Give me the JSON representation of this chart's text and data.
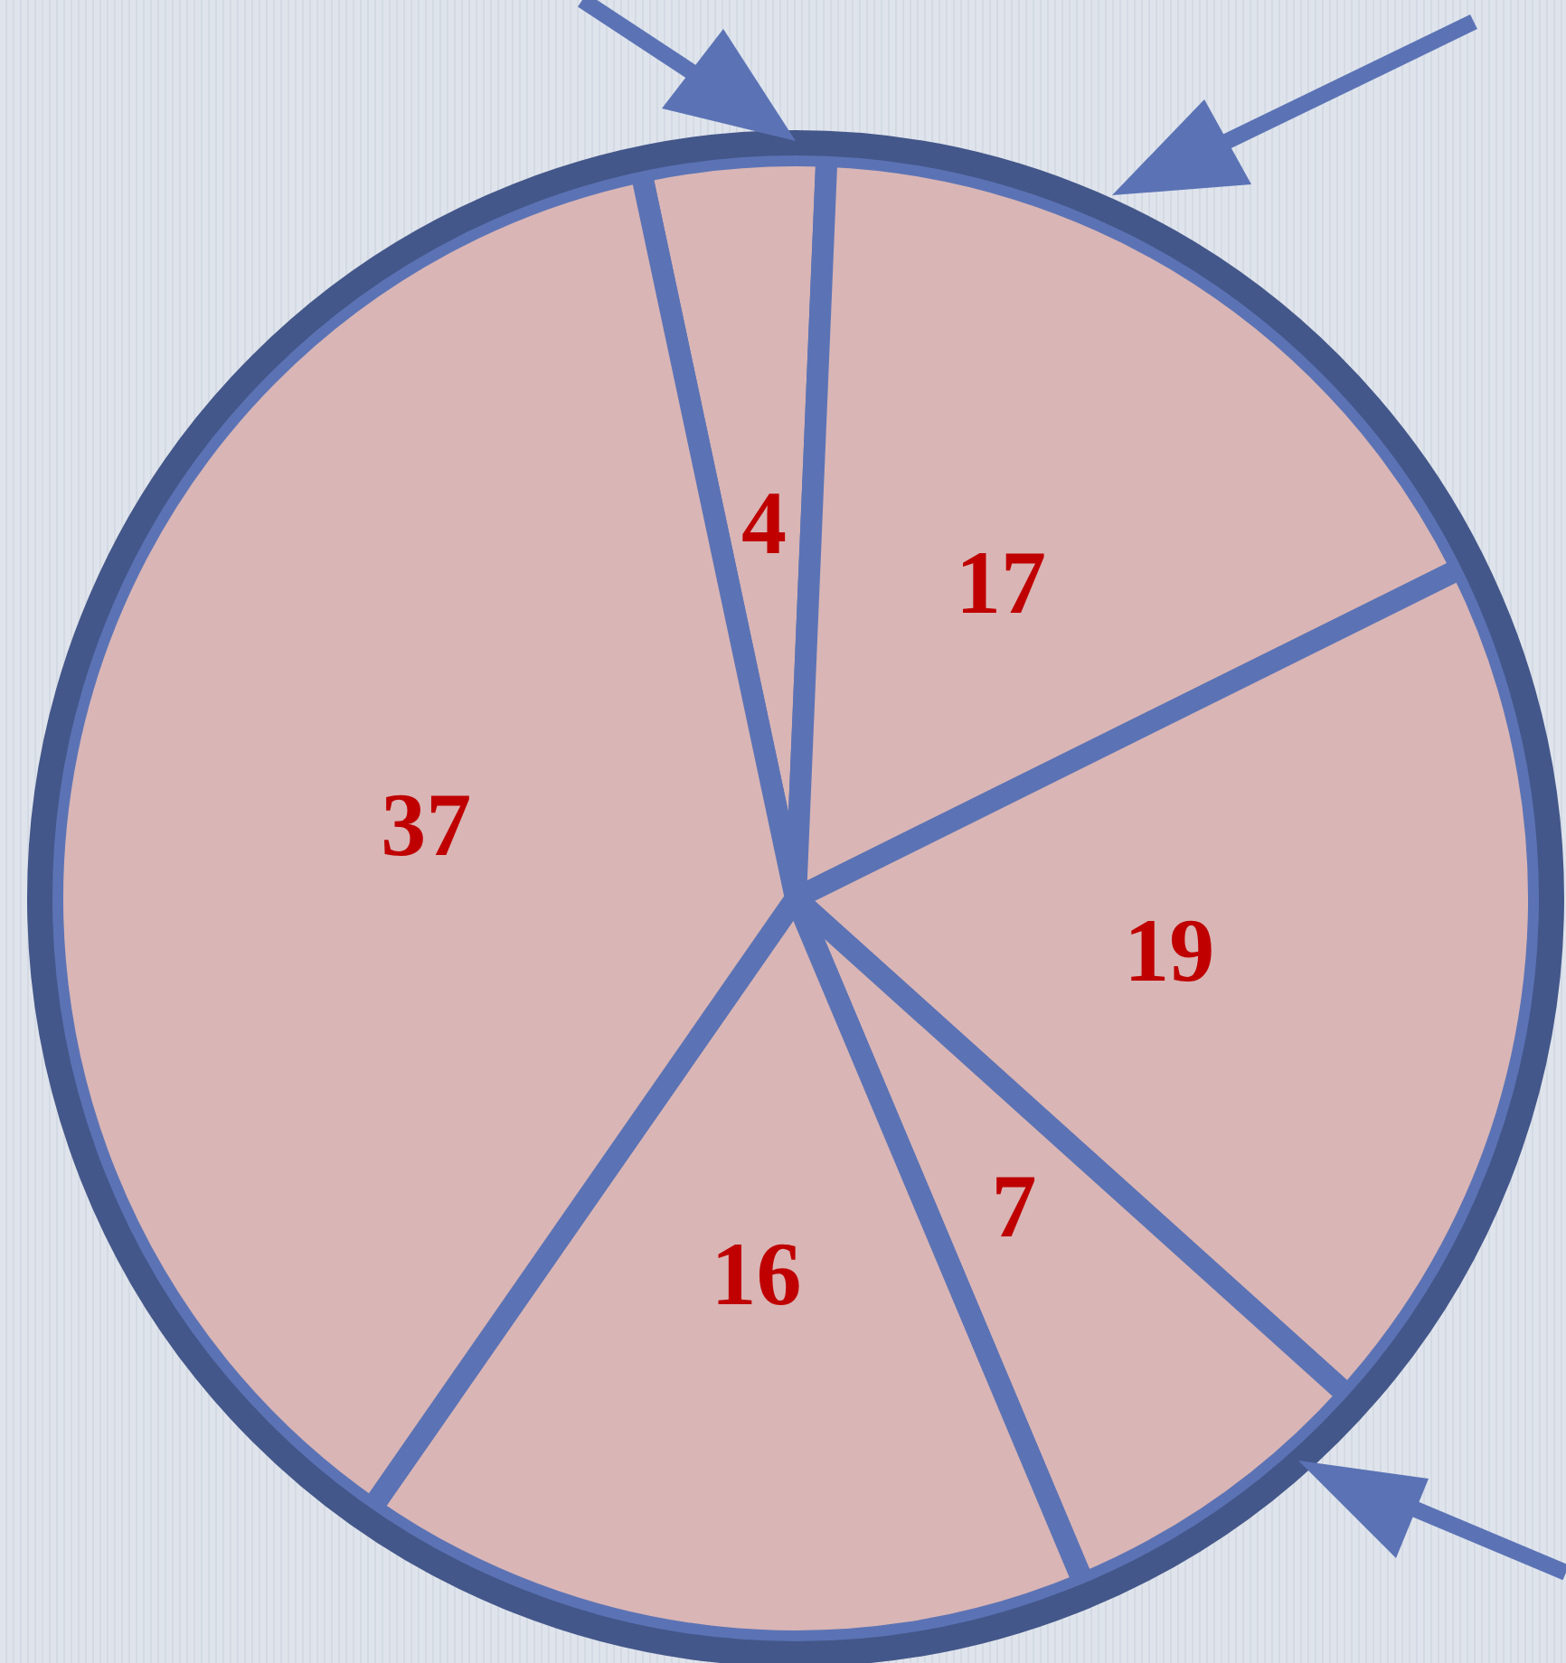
{
  "chart_data": {
    "type": "pie",
    "categories": [
      null,
      null,
      null,
      null,
      null,
      null
    ],
    "values": [
      4,
      17,
      19,
      7,
      16,
      37
    ],
    "colors": [
      "#d9b5b5",
      "#d9b5b5",
      "#d9b5b5",
      "#d9b5b5",
      "#d9b5b5",
      "#d9b5b5"
    ],
    "data_labels": true,
    "legend": false
  }
}
